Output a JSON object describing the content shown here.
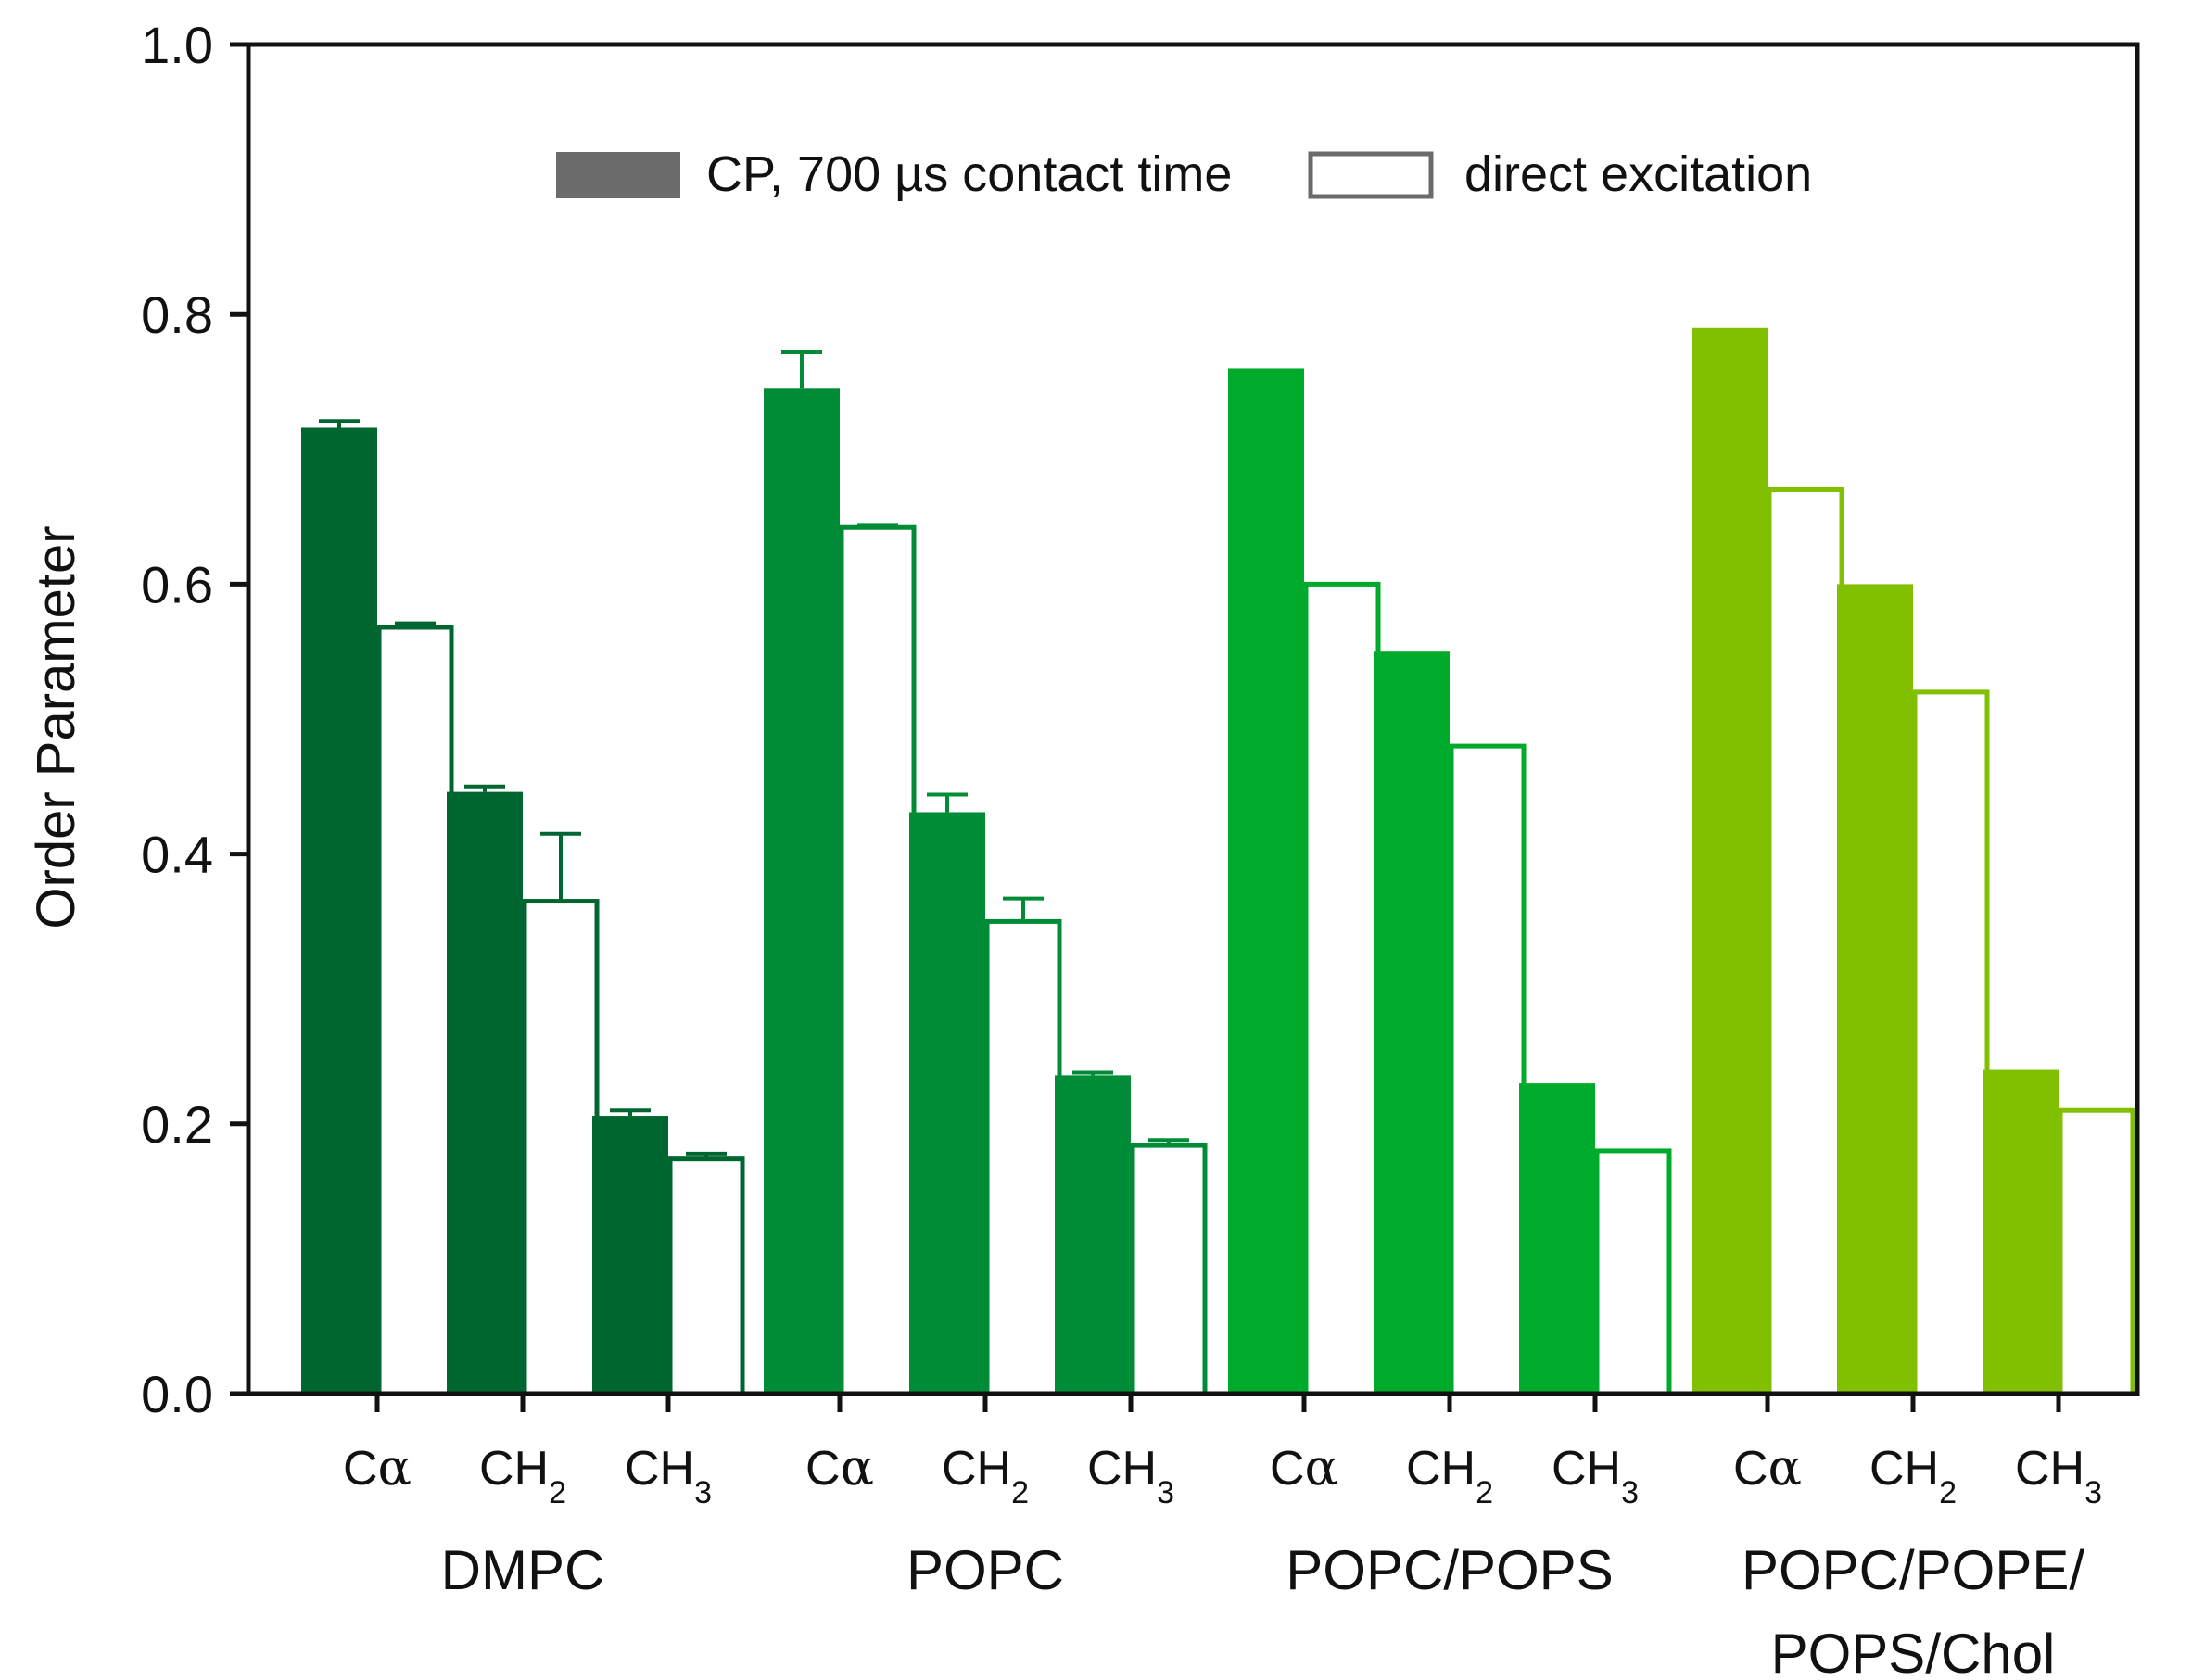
{
  "chart_data": {
    "type": "bar",
    "title": "",
    "xlabel": "",
    "ylabel": "Order Parameter",
    "ylim": [
      0,
      1.0
    ],
    "yticks": [
      "0.0",
      "0.2",
      "0.4",
      "0.6",
      "0.8",
      "1.0"
    ],
    "grid": false,
    "legend": {
      "placement": "top-center",
      "entries": [
        {
          "label": "CP, 700 µs contact time",
          "style": "filled",
          "color": "#6b6b6b"
        },
        {
          "label": "direct excitation",
          "style": "outline",
          "color": "#6b6b6b"
        }
      ]
    },
    "categories": [
      "Cα",
      "CH2",
      "CH3"
    ],
    "category_labels": [
      {
        "base": "C",
        "greek": "α",
        "sub": ""
      },
      {
        "base": "CH",
        "greek": "",
        "sub": "2"
      },
      {
        "base": "CH",
        "greek": "",
        "sub": "3"
      }
    ],
    "groups": [
      {
        "name": "DMPC",
        "name_lines": [
          "DMPC"
        ],
        "color": "#00662f",
        "cp": [
          0.716,
          0.446,
          0.206
        ],
        "cp_err": [
          0.005,
          0.004,
          0.004
        ],
        "direct": [
          0.568,
          0.365,
          0.174
        ],
        "direct_err": [
          0.003,
          0.05,
          0.004
        ]
      },
      {
        "name": "POPC",
        "name_lines": [
          "POPC"
        ],
        "color": "#008c36",
        "cp": [
          0.745,
          0.431,
          0.236
        ],
        "cp_err": [
          0.027,
          0.013,
          0.002
        ],
        "direct": [
          0.642,
          0.35,
          0.184
        ],
        "direct_err": [
          0.002,
          0.017,
          0.004
        ]
      },
      {
        "name": "POPC/POPS",
        "name_lines": [
          "POPC/POPS"
        ],
        "color": "#00aa2a",
        "cp": [
          0.76,
          0.55,
          0.23
        ],
        "cp_err": [
          0,
          0,
          0
        ],
        "direct": [
          0.6,
          0.48,
          0.18
        ],
        "direct_err": [
          0,
          0,
          0
        ]
      },
      {
        "name": "POPC/POPE/POPS/Chol",
        "name_lines": [
          "POPC/POPE/",
          "POPS/Chol"
        ],
        "color": "#80c000",
        "cp": [
          0.79,
          0.6,
          0.24
        ],
        "cp_err": [
          0,
          0,
          0
        ],
        "direct": [
          0.67,
          0.52,
          0.21
        ],
        "direct_err": [
          0,
          0,
          0
        ]
      }
    ]
  }
}
